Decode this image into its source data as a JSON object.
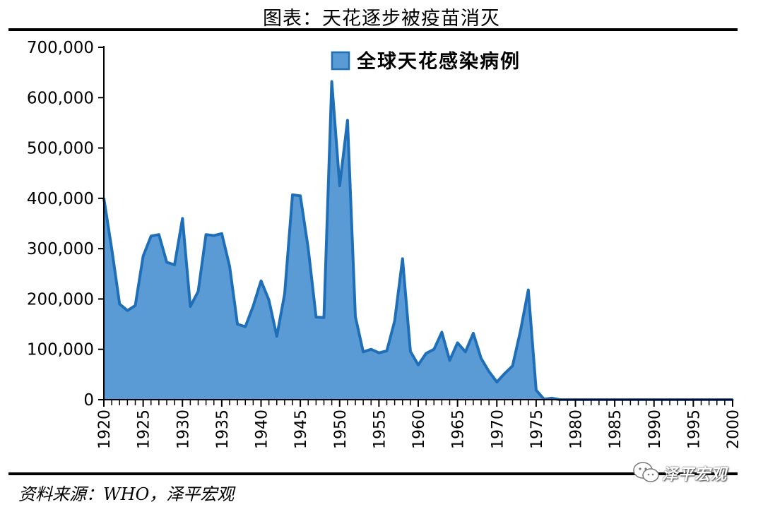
{
  "title": "图表：天花逐步被疫苗消灭",
  "source": "资料来源：WHO，泽平宏观",
  "watermark": "泽平宏观",
  "colors": {
    "area_fill": "#5b9bd5",
    "line": "#1f6fb8",
    "rule": "#000000"
  },
  "chart_data": {
    "type": "area",
    "title": "",
    "xlabel": "",
    "ylabel": "",
    "ylim": [
      0,
      700000
    ],
    "xlim": [
      1920,
      2000
    ],
    "yticks": [
      0,
      100000,
      200000,
      300000,
      400000,
      500000,
      600000,
      700000
    ],
    "ytick_labels": [
      "0",
      "100,000",
      "200,000",
      "300,000",
      "400,000",
      "500,000",
      "600,000",
      "700,000"
    ],
    "xticks": [
      1920,
      1925,
      1930,
      1935,
      1940,
      1945,
      1950,
      1955,
      1960,
      1965,
      1970,
      1975,
      1980,
      1985,
      1990,
      1995,
      2000
    ],
    "grid": false,
    "legend_position": "top-center",
    "series": [
      {
        "name": "全球天花感染病例",
        "x": [
          1920,
          1921,
          1922,
          1923,
          1924,
          1925,
          1926,
          1927,
          1928,
          1929,
          1930,
          1931,
          1932,
          1933,
          1934,
          1935,
          1936,
          1937,
          1938,
          1939,
          1940,
          1941,
          1942,
          1943,
          1944,
          1945,
          1946,
          1947,
          1948,
          1949,
          1950,
          1951,
          1952,
          1953,
          1954,
          1955,
          1956,
          1957,
          1958,
          1959,
          1960,
          1961,
          1962,
          1963,
          1964,
          1965,
          1966,
          1967,
          1968,
          1969,
          1970,
          1971,
          1972,
          1973,
          1974,
          1975,
          1976,
          1977,
          1978,
          1979,
          1980,
          1985,
          1990,
          1995,
          2000
        ],
        "values": [
          400000,
          300000,
          190000,
          177000,
          187000,
          285000,
          325000,
          328000,
          273000,
          268000,
          360000,
          185000,
          215000,
          328000,
          326000,
          330000,
          265000,
          150000,
          145000,
          186000,
          236000,
          198000,
          126000,
          210000,
          407000,
          405000,
          300000,
          164000,
          163000,
          632000,
          425000,
          555000,
          165000,
          95000,
          100000,
          93000,
          97000,
          156000,
          280000,
          96000,
          69000,
          92000,
          100000,
          134000,
          78000,
          113000,
          95000,
          132000,
          82000,
          56000,
          35000,
          52000,
          67000,
          136000,
          218000,
          19000,
          1000,
          3000,
          0,
          0,
          0,
          0,
          0,
          0,
          0
        ]
      }
    ]
  }
}
